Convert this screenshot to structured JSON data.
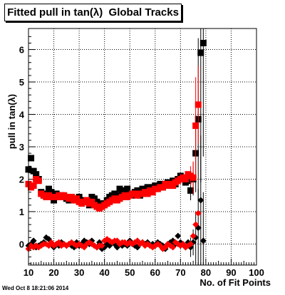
{
  "title": "Fitted pull in tan(λ)  Global Tracks",
  "footer": {
    "timestamp": "Wed Oct  8 18:21:06 2014"
  },
  "colors": {
    "series1": "#000000",
    "series2": "#ff0000",
    "grid": "#000000",
    "background": "#ffffff"
  },
  "chart_data": {
    "type": "scatter",
    "title": "Fitted pull in tan(λ)  Global Tracks",
    "xlabel": "No. of Fit Points",
    "ylabel": "pull in tan(λ)",
    "xlim": [
      10,
      100
    ],
    "ylim": [
      -0.65,
      6.65
    ],
    "xticks": [
      "10",
      "20",
      "30",
      "40",
      "50",
      "60",
      "70",
      "80",
      "90",
      "100"
    ],
    "yticks": [
      "0",
      "1",
      "2",
      "3",
      "4",
      "5",
      "6"
    ],
    "grid": true,
    "series": [
      {
        "marker": "square",
        "color": "#000000",
        "x": [
          10,
          11,
          12,
          13,
          14,
          15,
          16,
          17,
          18,
          19,
          20,
          21,
          22,
          23,
          24,
          25,
          26,
          27,
          28,
          29,
          30,
          31,
          32,
          33,
          34,
          35,
          36,
          37,
          38,
          39,
          40,
          41,
          42,
          43,
          44,
          45,
          46,
          47,
          48,
          49,
          50,
          51,
          52,
          53,
          54,
          55,
          56,
          57,
          58,
          59,
          60,
          61,
          62,
          63,
          64,
          65,
          66,
          67,
          68,
          69,
          70,
          71,
          72,
          73,
          74,
          75,
          76,
          77,
          78,
          79
        ],
        "y": [
          2.3,
          2.65,
          2.25,
          2.15,
          2.0,
          1.6,
          1.5,
          1.55,
          1.7,
          1.6,
          1.35,
          1.55,
          1.45,
          1.5,
          1.45,
          1.4,
          1.35,
          1.45,
          1.35,
          1.4,
          1.45,
          1.3,
          1.35,
          1.3,
          1.2,
          1.45,
          1.4,
          1.3,
          1.2,
          1.25,
          1.25,
          1.35,
          1.45,
          1.5,
          1.55,
          1.5,
          1.7,
          1.6,
          1.65,
          1.7,
          1.55,
          1.5,
          1.6,
          1.65,
          1.5,
          1.7,
          1.6,
          1.75,
          1.6,
          1.75,
          1.8,
          1.75,
          1.85,
          1.75,
          1.85,
          1.9,
          1.85,
          1.95,
          1.85,
          2.0,
          2.1,
          2.05,
          1.9,
          1.95,
          1.65,
          2.0,
          2.8,
          3.85,
          5.9,
          6.2
        ],
        "y_err": [
          0,
          0,
          0,
          0,
          0,
          0,
          0,
          0,
          0,
          0,
          0,
          0,
          0,
          0,
          0,
          0,
          0,
          0,
          0,
          0,
          0,
          0,
          0,
          0,
          0,
          0,
          0,
          0,
          0,
          0,
          0,
          0,
          0,
          0,
          0,
          0,
          0,
          0,
          0,
          0,
          0,
          0,
          0,
          0,
          0,
          0,
          0,
          0,
          0,
          0,
          0,
          0,
          0,
          0,
          0,
          0,
          0,
          0,
          0,
          0,
          0,
          0,
          0,
          0,
          0.3,
          0.5,
          1.2,
          2.5,
          4.0,
          3.5
        ]
      },
      {
        "marker": "square",
        "color": "#ff0000",
        "x": [
          10,
          11,
          12,
          13,
          14,
          15,
          16,
          17,
          18,
          19,
          20,
          21,
          22,
          23,
          24,
          25,
          26,
          27,
          28,
          29,
          30,
          31,
          32,
          33,
          34,
          35,
          36,
          37,
          38,
          39,
          40,
          41,
          42,
          43,
          44,
          45,
          46,
          47,
          48,
          49,
          50,
          51,
          52,
          53,
          54,
          55,
          56,
          57,
          58,
          59,
          60,
          61,
          62,
          63,
          64,
          65,
          66,
          67,
          68,
          69,
          70,
          71,
          72,
          73,
          74,
          75,
          76,
          77
        ],
        "y": [
          1.85,
          1.75,
          1.8,
          2.0,
          1.95,
          1.55,
          1.5,
          1.45,
          1.5,
          1.45,
          1.45,
          1.45,
          1.5,
          1.45,
          1.5,
          1.45,
          1.4,
          1.45,
          1.35,
          1.4,
          1.3,
          1.25,
          1.3,
          1.35,
          1.25,
          1.3,
          1.2,
          1.15,
          1.1,
          1.15,
          1.2,
          1.25,
          1.3,
          1.35,
          1.4,
          1.35,
          1.4,
          1.45,
          1.5,
          1.45,
          1.5,
          1.55,
          1.55,
          1.5,
          1.55,
          1.55,
          1.6,
          1.55,
          1.65,
          1.6,
          1.7,
          1.7,
          1.75,
          1.75,
          1.85,
          1.8,
          1.85,
          1.8,
          1.9,
          1.95,
          2.0,
          2.05,
          2.0,
          2.15,
          2.1,
          2.05,
          3.65,
          4.3
        ],
        "y_err": [
          0,
          0,
          0,
          0,
          0,
          0,
          0,
          0,
          0,
          0,
          0,
          0,
          0,
          0,
          0,
          0,
          0,
          0,
          0,
          0,
          0,
          0,
          0,
          0,
          0,
          0,
          0,
          0,
          0,
          0,
          0,
          0,
          0,
          0,
          0,
          0,
          0,
          0,
          0,
          0,
          0,
          0,
          0,
          0,
          0,
          0,
          0,
          0,
          0,
          0,
          0,
          0,
          0,
          0,
          0,
          0,
          0,
          0,
          0,
          0,
          0,
          0,
          0,
          0,
          0.3,
          0.5,
          1.5,
          1.2
        ]
      },
      {
        "marker": "diamond",
        "color": "#000000",
        "x": [
          10,
          11,
          12,
          13,
          14,
          15,
          16,
          17,
          18,
          19,
          20,
          21,
          22,
          23,
          24,
          25,
          26,
          27,
          28,
          29,
          30,
          31,
          32,
          33,
          34,
          35,
          36,
          37,
          38,
          39,
          40,
          41,
          42,
          43,
          44,
          45,
          46,
          47,
          48,
          49,
          50,
          51,
          52,
          53,
          54,
          55,
          56,
          57,
          58,
          59,
          60,
          61,
          62,
          63,
          64,
          65,
          66,
          67,
          68,
          69,
          70,
          71,
          72,
          73,
          74,
          75,
          76,
          77,
          78,
          79
        ],
        "y": [
          -0.05,
          0.0,
          0.1,
          -0.1,
          -0.05,
          0.0,
          0.05,
          0.2,
          0.15,
          0.0,
          -0.1,
          0.0,
          -0.05,
          0.05,
          0.0,
          -0.05,
          0.0,
          -0.05,
          -0.1,
          0.05,
          -0.05,
          0.0,
          0.1,
          0.05,
          0.0,
          0.1,
          -0.05,
          -0.1,
          0.05,
          -0.15,
          -0.1,
          0.0,
          -0.05,
          0.05,
          0.0,
          -0.1,
          0.0,
          -0.05,
          0.0,
          -0.05,
          0.1,
          0.0,
          -0.05,
          -0.1,
          0.0,
          0.05,
          0.0,
          0.05,
          -0.05,
          0.0,
          -0.05,
          0.05,
          0.0,
          -0.05,
          -0.15,
          0.0,
          0.05,
          0.1,
          0.0,
          0.25,
          0.05,
          0.0,
          -0.1,
          0.05,
          -0.1,
          0.05,
          0.2,
          0.5,
          1.35,
          0.1
        ],
        "y_err": [
          0,
          0,
          0,
          0,
          0,
          0,
          0,
          0,
          0,
          0,
          0,
          0,
          0,
          0,
          0,
          0,
          0,
          0,
          0,
          0,
          0,
          0,
          0,
          0,
          0,
          0,
          0,
          0,
          0,
          0,
          0,
          0,
          0,
          0,
          0,
          0,
          0,
          0,
          0,
          0,
          0,
          0,
          0,
          0,
          0,
          0,
          0,
          0,
          0,
          0,
          0,
          0,
          0,
          0,
          0,
          0,
          0,
          0,
          0,
          0,
          0,
          0,
          0,
          0,
          0.3,
          0.4,
          0.8,
          1.2,
          2.0,
          1.5
        ]
      },
      {
        "marker": "diamond",
        "color": "#ff0000",
        "x": [
          10,
          11,
          12,
          13,
          14,
          15,
          16,
          17,
          18,
          19,
          20,
          21,
          22,
          23,
          24,
          25,
          26,
          27,
          28,
          29,
          30,
          31,
          32,
          33,
          34,
          35,
          36,
          37,
          38,
          39,
          40,
          41,
          42,
          43,
          44,
          45,
          46,
          47,
          48,
          49,
          50,
          51,
          52,
          53,
          54,
          55,
          56,
          57,
          58,
          59,
          60,
          61,
          62,
          63,
          64,
          65,
          66,
          67,
          68,
          69,
          70,
          71,
          72,
          73,
          74,
          75,
          76,
          77
        ],
        "y": [
          -0.15,
          -0.05,
          -0.1,
          -0.05,
          -0.1,
          -0.05,
          0.0,
          0.0,
          -0.05,
          0.05,
          -0.05,
          0.0,
          0.05,
          -0.05,
          0.0,
          -0.05,
          0.0,
          0.05,
          0.0,
          -0.05,
          0.0,
          -0.05,
          -0.1,
          0.0,
          0.05,
          0.0,
          -0.05,
          -0.1,
          -0.05,
          -0.05,
          0.1,
          0.15,
          0.1,
          0.05,
          0.1,
          0.1,
          0.0,
          0.05,
          0.05,
          0.0,
          0.05,
          0.0,
          0.05,
          0.1,
          0.0,
          0.05,
          -0.05,
          0.0,
          -0.05,
          -0.1,
          -0.05,
          0.0,
          -0.05,
          -0.15,
          -0.1,
          0.0,
          -0.05,
          -0.1,
          0.05,
          0.0,
          -0.05,
          0.0,
          -0.1,
          -0.05,
          0.0,
          0.25,
          0.6,
          0.95
        ]
      }
    ]
  }
}
